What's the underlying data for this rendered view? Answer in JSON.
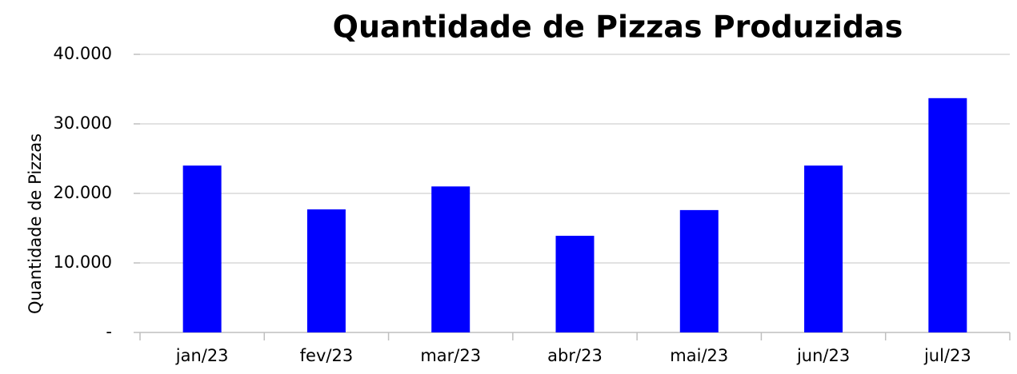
{
  "chart_data": {
    "type": "bar",
    "title": "Quantidade de Pizzas Produzidas",
    "y_label": "Quantidade de Pizzas",
    "categories": [
      "jan/23",
      "fev/23",
      "mar/23",
      "abr/23",
      "mai/23",
      "jun/23",
      "jul/23"
    ],
    "values": [
      24000,
      17700,
      21000,
      13900,
      17600,
      24000,
      33700
    ],
    "color": "#0000ff",
    "ylim": [
      0,
      40000
    ],
    "yticks": [
      {
        "value": 0,
        "label": "-"
      },
      {
        "value": 10000,
        "label": "10.000"
      },
      {
        "value": 20000,
        "label": "20.000"
      },
      {
        "value": 30000,
        "label": "30.000"
      },
      {
        "value": 40000,
        "label": "40.000"
      }
    ],
    "grid": true
  }
}
